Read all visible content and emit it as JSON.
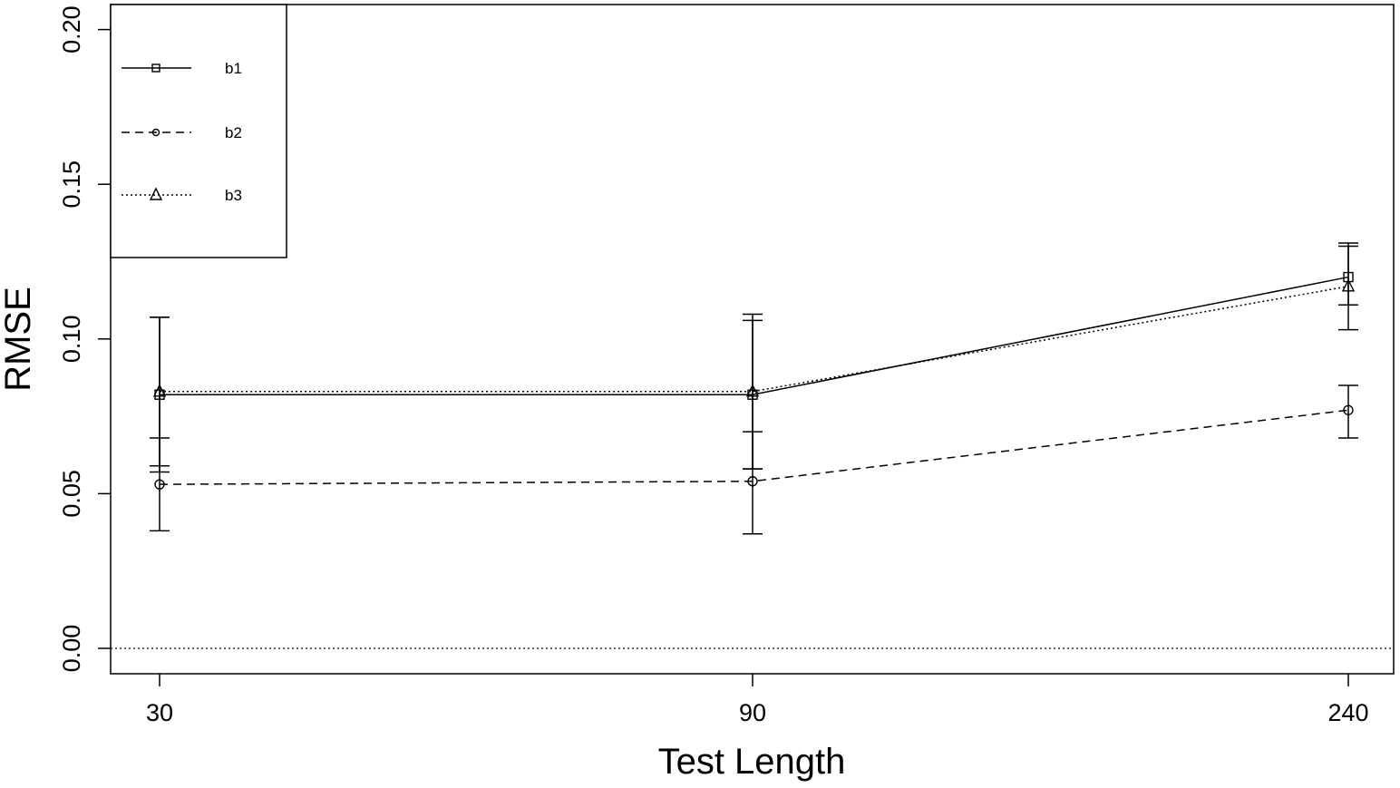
{
  "chart_data": {
    "type": "line",
    "title": "",
    "xlabel": "Test Length",
    "ylabel": "RMSE",
    "categories": [
      "30",
      "90",
      "240"
    ],
    "ylim": [
      0.0,
      0.2
    ],
    "yticks": [
      "0.00",
      "0.05",
      "0.10",
      "0.15",
      "0.20"
    ],
    "reference_line": 0.0,
    "legend_position": "top-left",
    "series": [
      {
        "name": "b1",
        "marker": "square",
        "line_style": "solid",
        "values": [
          0.082,
          0.082,
          0.12
        ],
        "error_low": [
          0.057,
          0.058,
          0.111
        ],
        "error_high": [
          0.107,
          0.106,
          0.13
        ]
      },
      {
        "name": "b2",
        "marker": "circle",
        "line_style": "dashed",
        "values": [
          0.053,
          0.054,
          0.077
        ],
        "error_low": [
          0.038,
          0.037,
          0.068
        ],
        "error_high": [
          0.068,
          0.07,
          0.085
        ]
      },
      {
        "name": "b3",
        "marker": "triangle",
        "line_style": "dotted",
        "values": [
          0.083,
          0.083,
          0.117
        ],
        "error_low": [
          0.059,
          0.058,
          0.103
        ],
        "error_high": [
          0.107,
          0.108,
          0.131
        ]
      }
    ]
  }
}
